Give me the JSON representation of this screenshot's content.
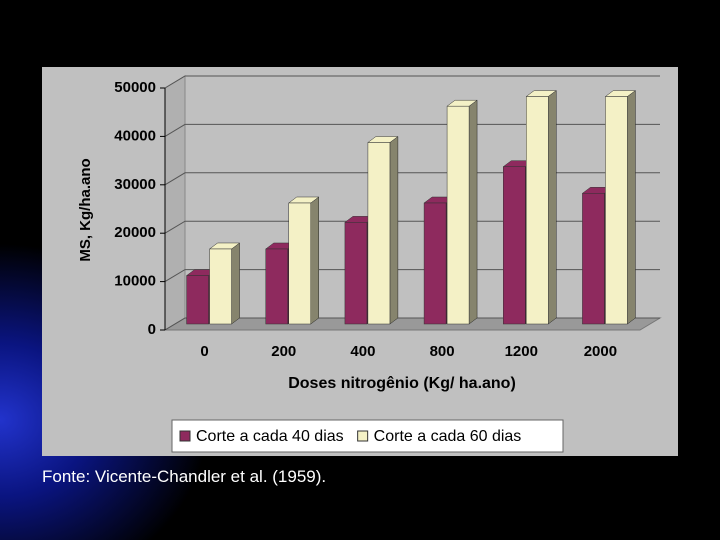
{
  "chart_data": {
    "type": "bar3d",
    "y_label": "MS, Kg/ha.ano",
    "x_label": "Doses nitrogênio (Kg/ ha.ano)",
    "categories": [
      "0",
      "200",
      "400",
      "800",
      "1200",
      "2000"
    ],
    "series": [
      {
        "name": "Corte a cada 40 dias",
        "color": "#8e2a5e",
        "values": [
          10000,
          15500,
          21000,
          25000,
          32500,
          27000
        ]
      },
      {
        "name": "Corte a cada 60 dias",
        "color": "#f4f1c6",
        "values": [
          15500,
          25000,
          37500,
          45000,
          47000,
          47000
        ]
      }
    ],
    "ylim": [
      0,
      50000
    ],
    "yticks": [
      0,
      10000,
      20000,
      30000,
      40000,
      50000
    ],
    "grid": true,
    "legend": "bottom"
  },
  "footer": {
    "source": "Fonte: Vicente-Chandler et al. (1959)."
  }
}
